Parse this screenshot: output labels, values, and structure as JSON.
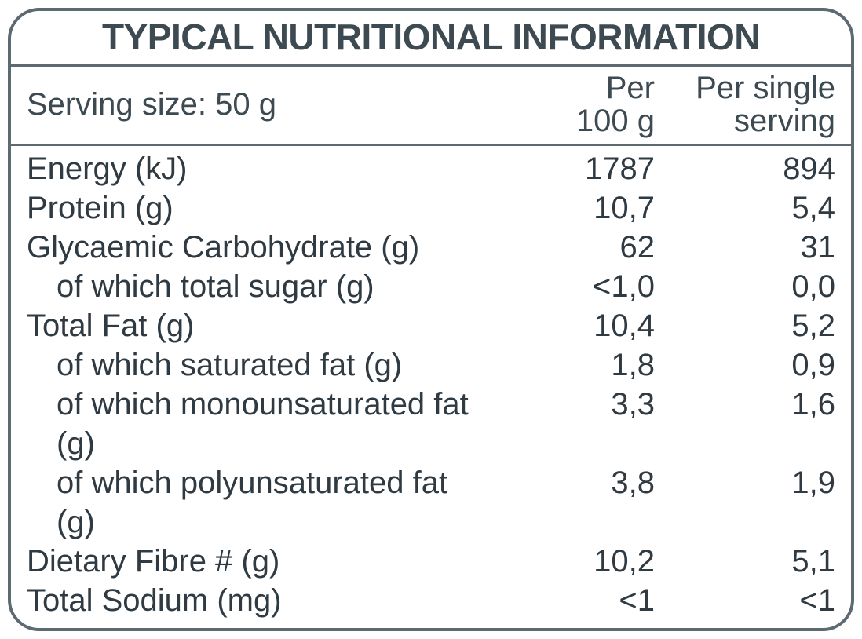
{
  "title": "TYPICAL NUTRITIONAL INFORMATION",
  "serving_size": "Serving size: 50 g",
  "col_per100_line1": "Per",
  "col_per100_line2": "100 g",
  "col_serving_line1": "Per single",
  "col_serving_line2": "serving",
  "rows": [
    {
      "label": "Energy (kJ)",
      "per100": "1787",
      "perServing": "894",
      "indent": false
    },
    {
      "label": "Protein (g)",
      "per100": "10,7",
      "perServing": "5,4",
      "indent": false
    },
    {
      "label": "Glycaemic Carbohydrate (g)",
      "per100": "62",
      "perServing": "31",
      "indent": false
    },
    {
      "label": "of which total sugar (g)",
      "per100": "<1,0",
      "perServing": "0,0",
      "indent": true
    },
    {
      "label": "Total Fat (g)",
      "per100": "10,4",
      "perServing": "5,2",
      "indent": false
    },
    {
      "label": "of which saturated fat (g)",
      "per100": "1,8",
      "perServing": "0,9",
      "indent": true
    },
    {
      "label": "of which monounsaturated fat (g)",
      "per100": "3,3",
      "perServing": "1,6",
      "indent": true
    },
    {
      "label": "of which polyunsaturated fat (g)",
      "per100": "3,8",
      "perServing": "1,9",
      "indent": true
    },
    {
      "label": "Dietary Fibre # (g)",
      "per100": "10,2",
      "perServing": "5,1",
      "indent": false
    },
    {
      "label": "Total Sodium (mg)",
      "per100": "<1",
      "perServing": "<1",
      "indent": false
    }
  ]
}
